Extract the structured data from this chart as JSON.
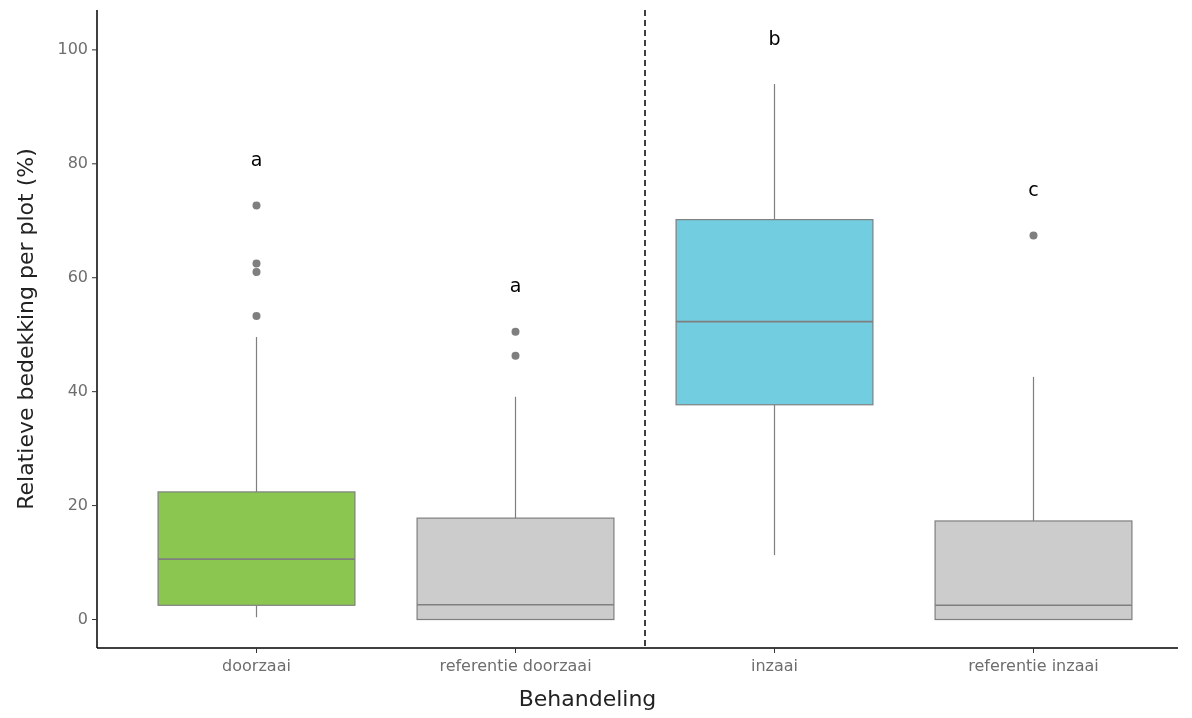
{
  "chart_data": {
    "type": "box",
    "xlabel": "Behandeling",
    "ylabel": "Relatieve bedekking per plot (%)",
    "categories": [
      "doorzaai",
      "referentie doorzaai",
      "inzaai",
      "referentie inzaai"
    ],
    "colors": [
      "#8bc750",
      "#cccccc",
      "#72cde0",
      "#cccccc"
    ],
    "boxes": [
      {
        "low": 0.4,
        "q1": 2.5,
        "median": 10.6,
        "q3": 22.4,
        "high": 49.6,
        "outliers": [
          72.7,
          62.5,
          61.0,
          53.3
        ]
      },
      {
        "low": 0,
        "q1": 0,
        "median": 2.6,
        "q3": 17.8,
        "high": 39.1,
        "outliers": [
          50.5,
          46.3
        ]
      },
      {
        "low": 11.3,
        "q1": 37.7,
        "median": 52.3,
        "q3": 70.2,
        "high": 94.0
      },
      {
        "low": 0,
        "q1": 0,
        "median": 2.5,
        "q3": 17.3,
        "high": 42.6,
        "outliers": [
          67.4
        ]
      }
    ],
    "annotations": [
      "a",
      "a",
      "b",
      "c"
    ],
    "ylim": [
      -5,
      107
    ],
    "yticks": [
      0,
      20,
      40,
      60,
      80,
      100
    ],
    "grid": false
  }
}
